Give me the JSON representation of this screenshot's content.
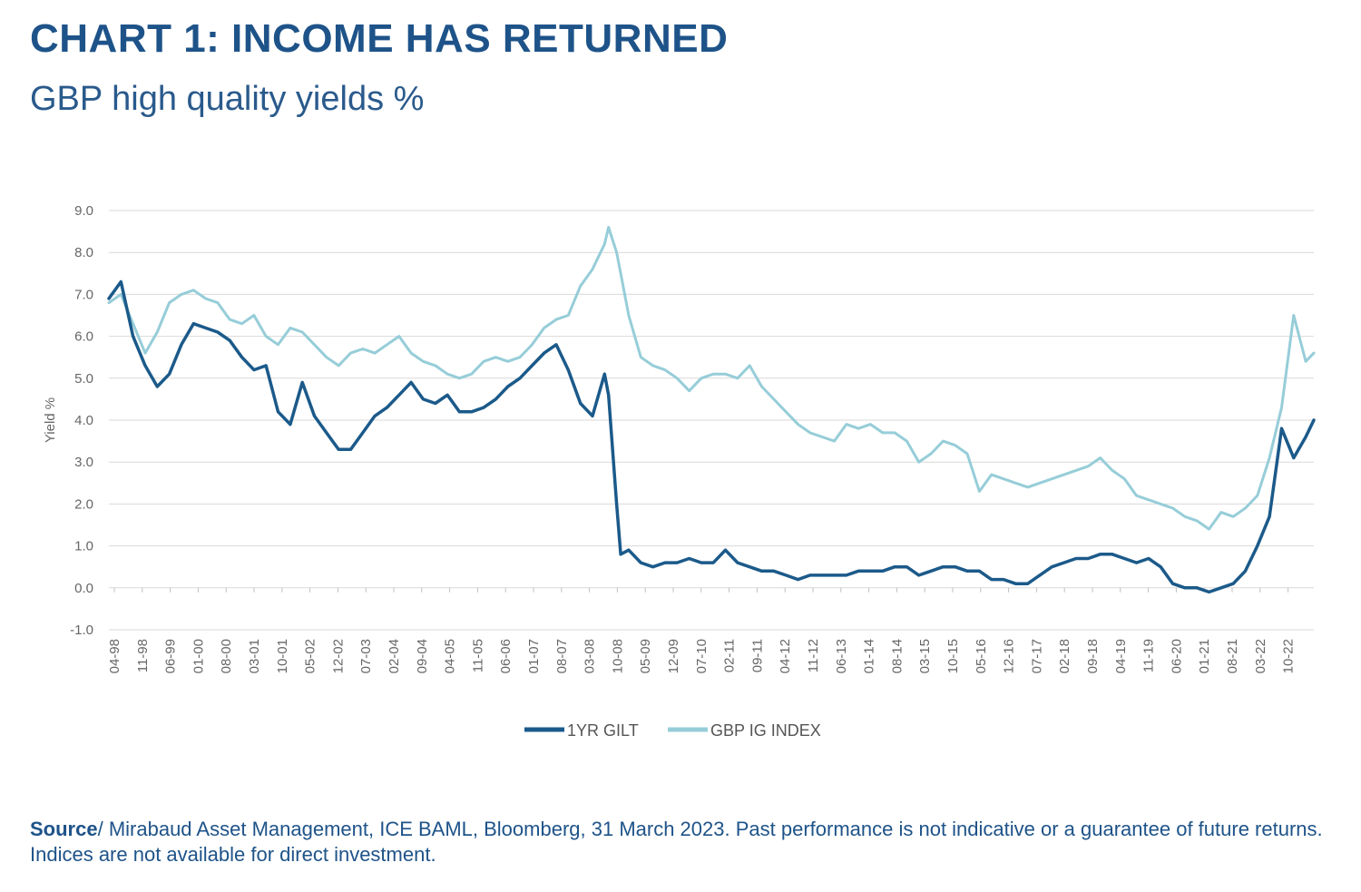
{
  "header": {
    "title": "CHART 1: INCOME HAS RETURNED",
    "subtitle": "GBP high quality yields %"
  },
  "footer": {
    "source_label": "Source",
    "source_text": "/ Mirabaud Asset Management, ICE BAML, Bloomberg, 31 March 2023. Past performance is not indicative or a guarantee of future returns. Indices are not available for direct investment."
  },
  "colors": {
    "gilt": "#1b5a8a",
    "ig_index": "#96cdd8",
    "title": "#1e5389",
    "grid": "#d9d9d9"
  },
  "chart_data": {
    "type": "line",
    "ylabel": "Yield %",
    "xlabel": "",
    "ylim": [
      -1.0,
      9.0
    ],
    "ytick_step": 1.0,
    "grid": true,
    "legend_position": "bottom",
    "x_tick_labels": [
      "04-98",
      "11-98",
      "06-99",
      "01-00",
      "08-00",
      "03-01",
      "10-01",
      "05-02",
      "12-02",
      "07-03",
      "02-04",
      "09-04",
      "04-05",
      "11-05",
      "06-06",
      "01-07",
      "08-07",
      "03-08",
      "10-08",
      "05-09",
      "12-09",
      "07-10",
      "02-11",
      "09-11",
      "04-12",
      "11-12",
      "06-13",
      "01-14",
      "08-14",
      "03-15",
      "10-15",
      "05-16",
      "12-16",
      "07-17",
      "02-18",
      "09-18",
      "04-19",
      "11-19",
      "06-20",
      "01-21",
      "08-21",
      "03-22",
      "10-22"
    ],
    "x_dates": [
      "1998-04",
      "1998-07",
      "1998-10",
      "1999-01",
      "1999-04",
      "1999-07",
      "1999-10",
      "2000-01",
      "2000-04",
      "2000-07",
      "2000-10",
      "2001-01",
      "2001-04",
      "2001-07",
      "2001-10",
      "2002-01",
      "2002-04",
      "2002-07",
      "2002-10",
      "2003-01",
      "2003-04",
      "2003-07",
      "2003-10",
      "2004-01",
      "2004-04",
      "2004-07",
      "2004-10",
      "2005-01",
      "2005-04",
      "2005-07",
      "2005-10",
      "2006-01",
      "2006-04",
      "2006-07",
      "2006-10",
      "2007-01",
      "2007-04",
      "2007-07",
      "2007-10",
      "2008-01",
      "2008-04",
      "2008-07",
      "2008-08",
      "2008-10",
      "2008-11",
      "2009-01",
      "2009-04",
      "2009-07",
      "2009-10",
      "2010-01",
      "2010-04",
      "2010-07",
      "2010-10",
      "2011-01",
      "2011-04",
      "2011-07",
      "2011-10",
      "2012-01",
      "2012-04",
      "2012-07",
      "2012-10",
      "2013-01",
      "2013-04",
      "2013-07",
      "2013-10",
      "2014-01",
      "2014-04",
      "2014-07",
      "2014-10",
      "2015-01",
      "2015-04",
      "2015-07",
      "2015-10",
      "2016-01",
      "2016-04",
      "2016-07",
      "2016-10",
      "2017-01",
      "2017-04",
      "2017-07",
      "2017-10",
      "2018-01",
      "2018-04",
      "2018-07",
      "2018-10",
      "2019-01",
      "2019-04",
      "2019-07",
      "2019-10",
      "2020-01",
      "2020-04",
      "2020-07",
      "2020-10",
      "2021-01",
      "2021-04",
      "2021-07",
      "2021-10",
      "2022-01",
      "2022-04",
      "2022-07",
      "2022-10",
      "2023-01",
      "2023-03"
    ],
    "series": [
      {
        "name": "1YR GILT",
        "values": [
          6.9,
          7.3,
          6.0,
          5.3,
          4.8,
          5.1,
          5.8,
          6.3,
          6.2,
          6.1,
          5.9,
          5.5,
          5.2,
          5.3,
          4.2,
          3.9,
          4.9,
          4.1,
          3.7,
          3.3,
          3.3,
          3.7,
          4.1,
          4.3,
          4.6,
          4.9,
          4.5,
          4.4,
          4.6,
          4.2,
          4.2,
          4.3,
          4.5,
          4.8,
          5.0,
          5.3,
          5.6,
          5.8,
          5.2,
          4.4,
          4.1,
          5.1,
          4.6,
          2.0,
          0.8,
          0.9,
          0.6,
          0.5,
          0.6,
          0.6,
          0.7,
          0.6,
          0.6,
          0.9,
          0.6,
          0.5,
          0.4,
          0.4,
          0.3,
          0.2,
          0.3,
          0.3,
          0.3,
          0.3,
          0.4,
          0.4,
          0.4,
          0.5,
          0.5,
          0.3,
          0.4,
          0.5,
          0.5,
          0.4,
          0.4,
          0.2,
          0.2,
          0.1,
          0.1,
          0.3,
          0.5,
          0.6,
          0.7,
          0.7,
          0.8,
          0.8,
          0.7,
          0.6,
          0.7,
          0.5,
          0.1,
          0.0,
          0.0,
          -0.1,
          0.0,
          0.1,
          0.4,
          1.0,
          1.7,
          3.8,
          3.1,
          3.6,
          4.0
        ]
      },
      {
        "name": "GBP IG INDEX",
        "values": [
          6.8,
          7.0,
          6.3,
          5.6,
          6.1,
          6.8,
          7.0,
          7.1,
          6.9,
          6.8,
          6.4,
          6.3,
          6.5,
          6.0,
          5.8,
          6.2,
          6.1,
          5.8,
          5.5,
          5.3,
          5.6,
          5.7,
          5.6,
          5.8,
          6.0,
          5.6,
          5.4,
          5.3,
          5.1,
          5.0,
          5.1,
          5.4,
          5.5,
          5.4,
          5.5,
          5.8,
          6.2,
          6.4,
          6.5,
          7.2,
          7.6,
          8.2,
          8.6,
          8.0,
          7.5,
          6.5,
          5.5,
          5.3,
          5.2,
          5.0,
          4.7,
          5.0,
          5.1,
          5.1,
          5.0,
          5.3,
          4.8,
          4.5,
          4.2,
          3.9,
          3.7,
          3.6,
          3.5,
          3.9,
          3.8,
          3.9,
          3.7,
          3.7,
          3.5,
          3.0,
          3.2,
          3.5,
          3.4,
          3.2,
          2.3,
          2.7,
          2.6,
          2.5,
          2.4,
          2.5,
          2.6,
          2.7,
          2.8,
          2.9,
          3.1,
          2.8,
          2.6,
          2.2,
          2.1,
          2.0,
          1.9,
          1.7,
          1.6,
          1.4,
          1.8,
          1.7,
          1.9,
          2.2,
          3.1,
          4.3,
          6.5,
          5.4,
          5.6
        ]
      }
    ]
  }
}
